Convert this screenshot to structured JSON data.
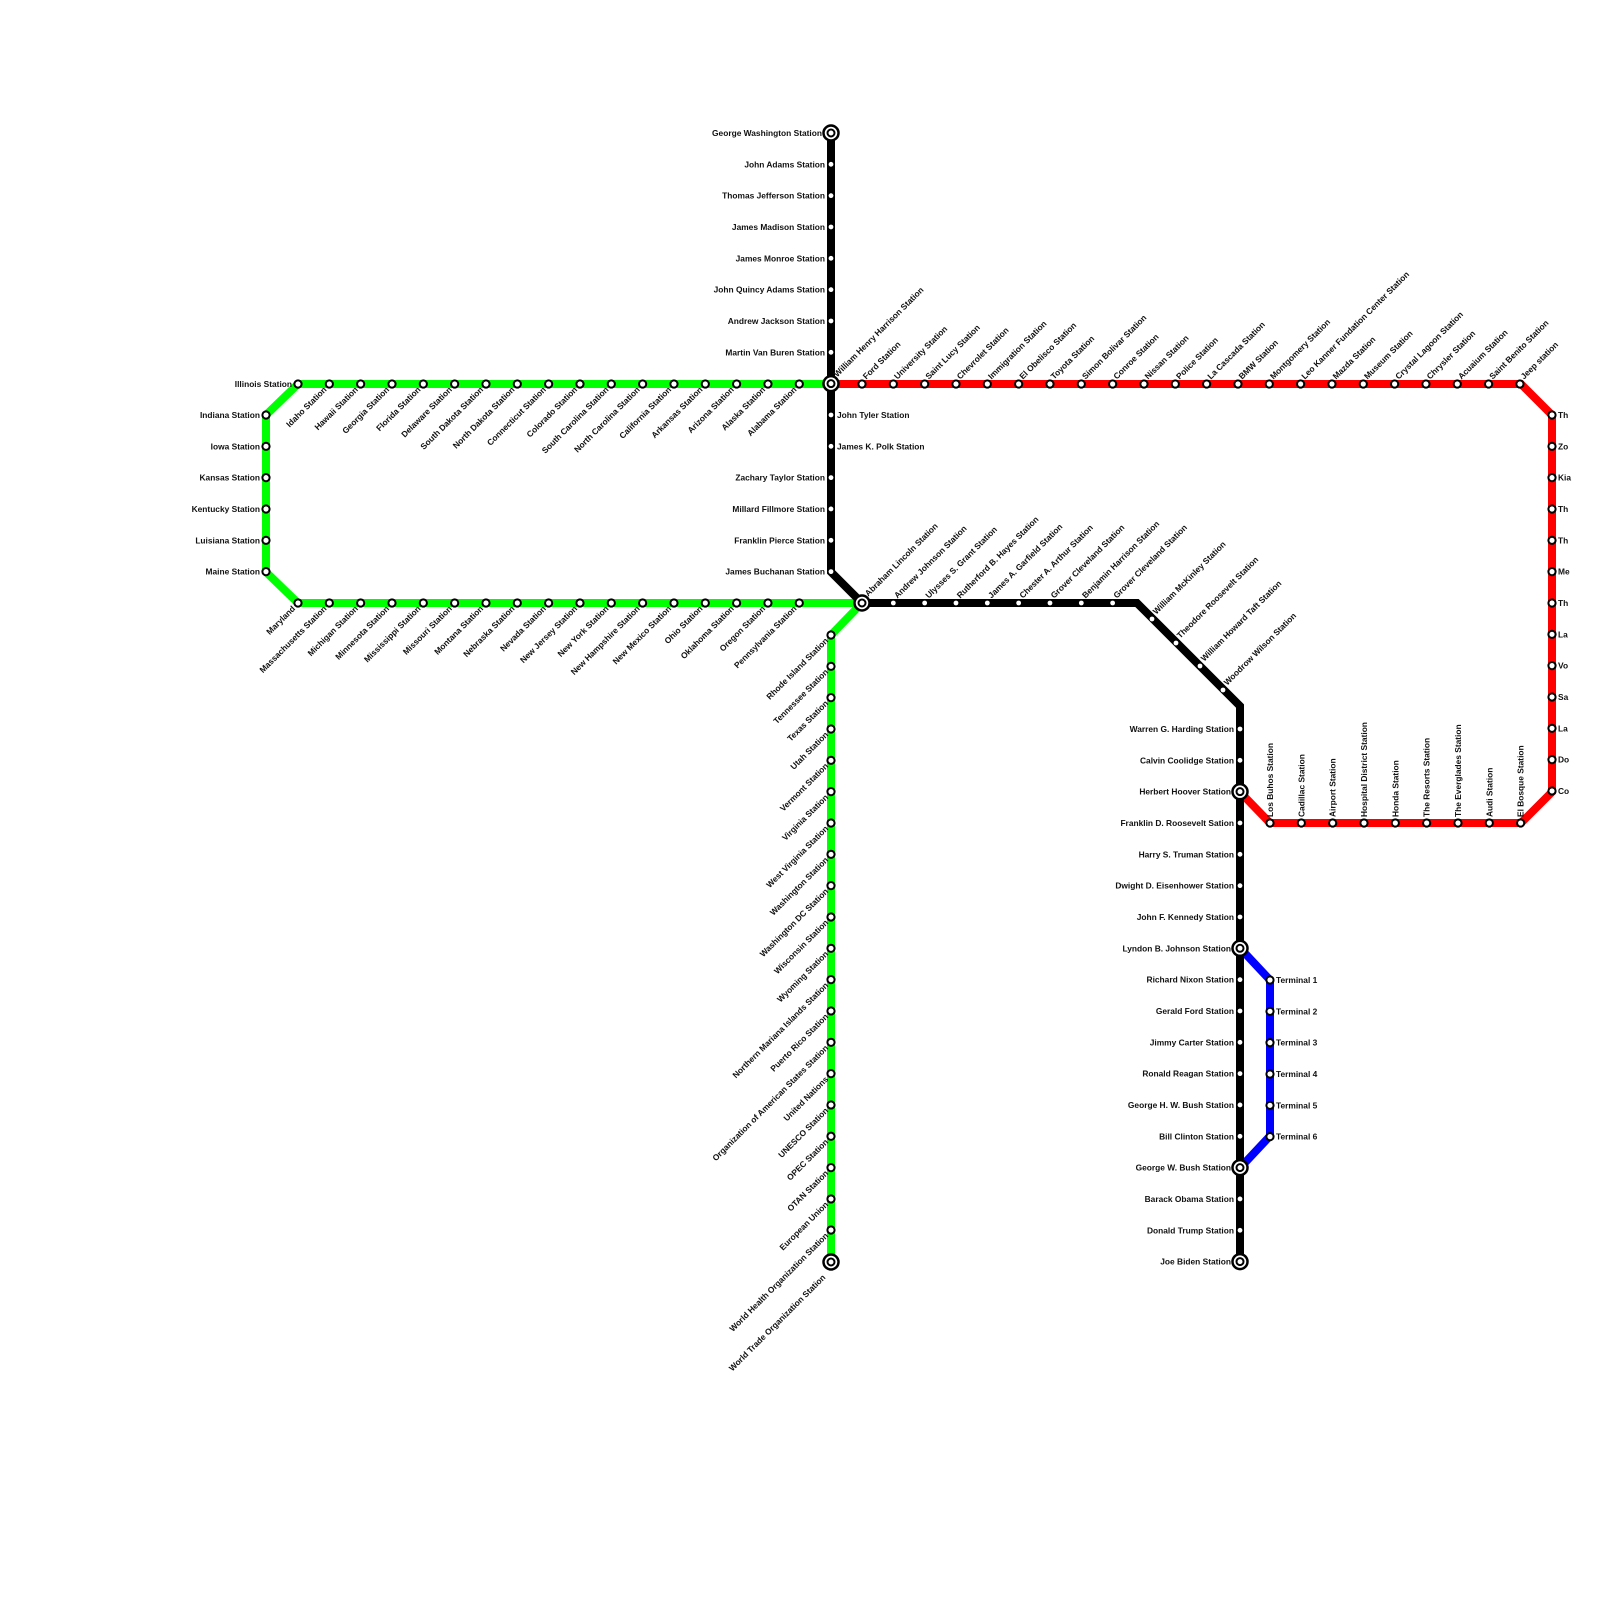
{
  "colors": {
    "black_line": "#000000",
    "green_line": "#00ff00",
    "red_line": "#ff0000",
    "blue_line": "#0000ff"
  },
  "black_line": {
    "north": [
      "George Washington Station",
      "John Adams Station",
      "Thomas Jefferson Station",
      "James Madison Station",
      "James Monroe Station",
      "John Quincy Adams Station",
      "Andrew Jackson Station",
      "Martin Van Buren Station",
      "William Henry Harrison Station",
      "John Tyler Station",
      "James K. Polk Station",
      "Zachary Taylor Station",
      "Millard Fillmore Station",
      "Franklin Pierce Station",
      "James Buchanan Station"
    ],
    "central": [
      "Abraham Lincoln Station",
      "Andrew Johnson Station",
      "Ulysses S. Grant Station",
      "Rutherford B. Hayes Station",
      "James A. Garfield Station",
      "Chester A. Arthur Station",
      "Grover Cleveland Station",
      "Benjamin Harrison Station",
      "Grover Cleveland Station"
    ],
    "diagonal": [
      "William McKinley Station",
      "Theodore Roosevelt Station",
      "William Howard Taft Station",
      "Woodrow Wilson Station"
    ],
    "south": [
      "Warren G. Harding Station",
      "Calvin Coolidge Station",
      "Herbert Hoover Station",
      "Franklin D. Roosevelt Sation",
      "Harry S. Truman Station",
      "Dwight D. Eisenhower Station",
      "John F. Kennedy Station",
      "Lyndon B. Johnson Station",
      "Richard Nixon Station",
      "Gerald Ford Station",
      "Jimmy Carter Station",
      "Ronald Reagan Station",
      "George H. W. Bush Station",
      "Bill Clinton Station",
      "George W. Bush Station",
      "Barack Obama Station",
      "Donald Trump Station",
      "Joe Biden Station"
    ]
  },
  "green_line": {
    "top": [
      "Illinois Station",
      "Idaho Station",
      "Hawaii Station",
      "Georgia Station",
      "Florida Station",
      "Delaware Station",
      "South Dakota Station",
      "North Dakota Station",
      "Connecticut Station",
      "Colorado Station",
      "South Carolina Station",
      "North Carolina Station",
      "California Station",
      "Arkansas Station",
      "Arizona Station",
      "Alaska Station",
      "Alabama Station"
    ],
    "left": [
      "Indiana Station",
      "Iowa Station",
      "Kansas Station",
      "Kentucky Station",
      "Luisiana Station",
      "Maine Station"
    ],
    "bottom": [
      "Maryland",
      "Massachusetts Station",
      "Michigan Station",
      "Minnesota Station",
      "Mississippi Station",
      "Missouri Station",
      "Montana Station",
      "Nebraska Station",
      "Nevada Station",
      "New Jersey Station",
      "New York Station",
      "New Hampshire Station",
      "New Mexico Station",
      "Ohio Station",
      "Oklahoma Station",
      "Oregon Station",
      "Pennsylvania Station"
    ],
    "south": [
      "Rhode Island Station",
      "Tennessee Station",
      "Texas Station",
      "Utah Station",
      "Vermont Station",
      "Virginia Station",
      "West Virginia Station",
      "Washington Station",
      "Washington DC Station",
      "Wisconsin Station",
      "Wyoming Station",
      "Northern Mariana Islands Station",
      "Puerto Rico Station",
      "Organization of American States Station",
      "United Nations",
      "UNESCO Station",
      "OPEC Station",
      "OTAN Station",
      "European Union",
      "World Health Organization Station",
      "World Trade Organization Station"
    ]
  },
  "red_line": {
    "top": [
      "Ford Station",
      "University Station",
      "Saint Lucy Station",
      "Chevrolet Station",
      "Immigration Station",
      "El Obelisco Station",
      "Toyota Station",
      "Simon Bolivar Station",
      "Conroe Station",
      "Nissan Station",
      "Police Station",
      "La Cascada Station",
      "BMW Station",
      "Montgomery Station",
      "Leo Kanner Fundation Center Station",
      "Mazda Station",
      "Museum Station",
      "Crystal Lagoon Station",
      "Chrysler Station",
      "Acuaium Station",
      "Saint Benito Station",
      "Jeep station"
    ],
    "right": [
      "Th",
      "Zo",
      "Kia",
      "Th",
      "Th",
      "Me",
      "Th",
      "La",
      "Vo",
      "Sa",
      "La",
      "Do",
      "Co"
    ],
    "bottom": [
      "Los Buhos Station",
      "Cadillac Station",
      "Airport Station",
      "Hospital District Station",
      "Honda Station",
      "The Resorts Station",
      "The Everglades Station",
      "Audi Station",
      "El Bosque Station"
    ]
  },
  "blue_line": {
    "terminals": [
      "Terminal 1",
      "Terminal 2",
      "Terminal 3",
      "Terminal 4",
      "Terminal 5",
      "Terminal 6"
    ]
  }
}
